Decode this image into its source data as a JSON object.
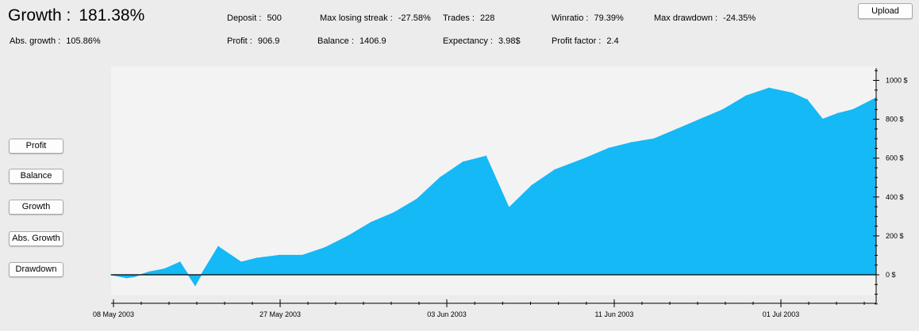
{
  "header": {
    "growth_label": "Growth :",
    "growth_value": "181.38%",
    "abs_growth_label": "Abs. growth",
    "abs_growth_value": "105.86%"
  },
  "stats": {
    "deposit_label": "Deposit",
    "deposit_value": "500",
    "profit_label": "Profit",
    "profit_value": "906.9",
    "max_losing_streak_label": "Max losing streak",
    "max_losing_streak_value": "-27.58%",
    "balance_label": "Balance",
    "balance_value": "1406.9",
    "trades_label": "Trades",
    "trades_value": "228",
    "expectancy_label": "Expectancy",
    "expectancy_value": "3.98$",
    "winratio_label": "Winratio",
    "winratio_value": "79.39%",
    "profit_factor_label": "Profit factor",
    "profit_factor_value": "2.4",
    "max_drawdown_label": "Max drawdown",
    "max_drawdown_value": "-24.35%"
  },
  "buttons": {
    "upload": "Upload",
    "profit": "Profit",
    "balance": "Balance",
    "growth": "Growth",
    "abs_growth": "Abs. Growth",
    "drawdown": "Drawdown"
  },
  "colors": {
    "fill": "#14b9f5",
    "plot_bg": "#f3f3f3",
    "zero_line": "#000000"
  },
  "chart_data": {
    "type": "area",
    "x_ticks": [
      "08 May 2003",
      "27 May 2003",
      "03 Jun 2003",
      "11 Jun 2003",
      "01 Jul 2003"
    ],
    "y_ticks": [
      "0 $",
      "200 $",
      "400 $",
      "600 $",
      "800 $",
      "1000 $"
    ],
    "ylim": [
      -150,
      1060
    ],
    "xlim": [
      0,
      100
    ],
    "grid": false,
    "series": [
      {
        "x": [
          0,
          2,
          3,
          5,
          7,
          9,
          11,
          12,
          14,
          17,
          19,
          22,
          25,
          28,
          31,
          34,
          37,
          40,
          43,
          46,
          49,
          52,
          55,
          58,
          62,
          65,
          68,
          71,
          74,
          77,
          80,
          83,
          86,
          89,
          91,
          93,
          95,
          97,
          100
        ],
        "y": [
          0,
          -15,
          -10,
          15,
          30,
          65,
          -55,
          15,
          145,
          65,
          85,
          100,
          100,
          140,
          200,
          270,
          320,
          390,
          500,
          580,
          610,
          345,
          460,
          540,
          600,
          650,
          680,
          700,
          750,
          800,
          850,
          920,
          960,
          935,
          900,
          800,
          830,
          850,
          910
        ]
      }
    ]
  }
}
